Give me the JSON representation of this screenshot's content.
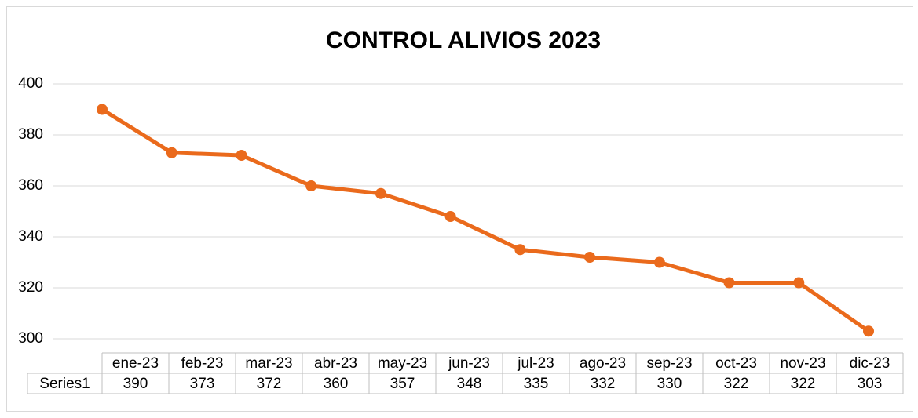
{
  "chart_data": {
    "type": "line",
    "title": "CONTROL ALIVIOS 2023",
    "categories": [
      "ene-23",
      "feb-23",
      "mar-23",
      "abr-23",
      "may-23",
      "jun-23",
      "jul-23",
      "ago-23",
      "sep-23",
      "oct-23",
      "nov-23",
      "dic-23"
    ],
    "series": [
      {
        "name": "Series1",
        "color": "#ea6a1c",
        "values": [
          390,
          373,
          372,
          360,
          357,
          348,
          335,
          332,
          330,
          322,
          322,
          303
        ]
      }
    ],
    "ylim": [
      300,
      400
    ],
    "yticks": [
      300,
      320,
      340,
      360,
      380,
      400
    ],
    "grid": true,
    "data_table": true
  }
}
